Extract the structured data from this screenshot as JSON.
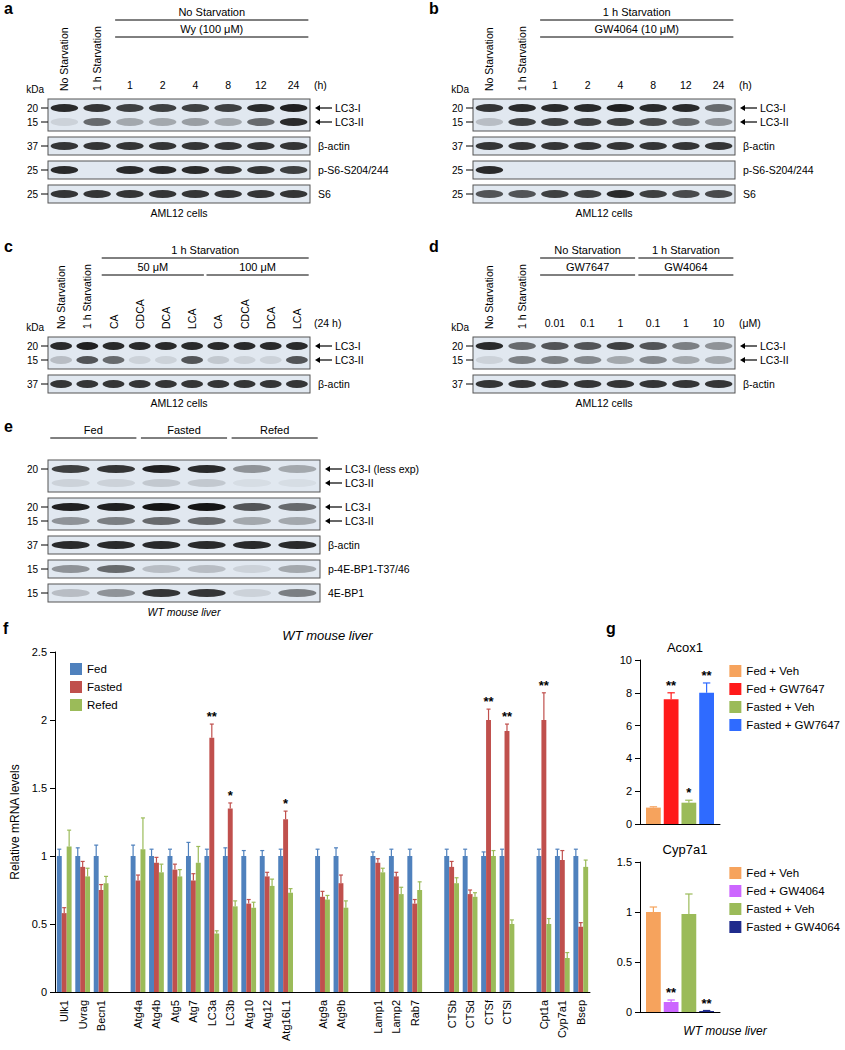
{
  "blots": [
    {
      "label": "a",
      "lane_labels": [
        "No Starvation",
        "1 h Starvation",
        "1",
        "2",
        "4",
        "8",
        "12",
        "24"
      ],
      "groups": [
        [
          {
            "text": "No Starvation",
            "from": 2,
            "to": 7
          }
        ],
        [
          {
            "text": "Wy (100 μM)",
            "from": 2,
            "to": 7
          }
        ]
      ],
      "suffix": "(h)",
      "unit": "kDa",
      "rows": [
        {
          "tracks": [
            {
              "kda": 20,
              "label": "LC3-I",
              "bands": [
                0.9,
                0.85,
                0.8,
                0.8,
                0.8,
                0.8,
                0.9,
                0.95
              ]
            },
            {
              "kda": 15,
              "label": "LC3-II",
              "bands": [
                0.1,
                0.6,
                0.3,
                0.3,
                0.35,
                0.3,
                0.6,
                0.9
              ]
            }
          ]
        },
        {
          "tracks": [
            {
              "kda": 37,
              "label": "β-actin",
              "bands": [
                0.85,
                0.85,
                0.85,
                0.85,
                0.85,
                0.85,
                0.85,
                0.85
              ]
            }
          ]
        },
        {
          "tracks": [
            {
              "kda": 25,
              "label": "p-S6-S204/244",
              "bands": [
                0.9,
                0,
                0.9,
                0.9,
                0.9,
                0.85,
                0.85,
                0.8
              ]
            }
          ]
        },
        {
          "tracks": [
            {
              "kda": 25,
              "label": "S6",
              "bands": [
                0.85,
                0.85,
                0.85,
                0.85,
                0.85,
                0.85,
                0.85,
                0.85
              ]
            }
          ]
        }
      ],
      "caption": "AML12 cells"
    },
    {
      "label": "b",
      "lane_labels": [
        "No Starvation",
        "1 h Starvation",
        "1",
        "2",
        "4",
        "8",
        "12",
        "24"
      ],
      "groups": [
        [
          {
            "text": "1 h Starvation",
            "from": 2,
            "to": 7
          }
        ],
        [
          {
            "text": "GW4064 (10 μM)",
            "from": 2,
            "to": 7
          }
        ]
      ],
      "suffix": "(h)",
      "unit": "kDa",
      "rows": [
        {
          "tracks": [
            {
              "kda": 20,
              "label": "LC3-I",
              "bands": [
                0.85,
                0.9,
                0.9,
                0.9,
                0.95,
                0.9,
                0.9,
                0.6
              ]
            },
            {
              "kda": 15,
              "label": "LC3-II",
              "bands": [
                0.2,
                0.8,
                0.8,
                0.8,
                0.8,
                0.75,
                0.6,
                0.4
              ]
            }
          ]
        },
        {
          "tracks": [
            {
              "kda": 37,
              "label": "β-actin",
              "bands": [
                0.85,
                0.85,
                0.85,
                0.85,
                0.85,
                0.85,
                0.85,
                0.85
              ]
            }
          ]
        },
        {
          "tracks": [
            {
              "kda": 25,
              "label": "p-S6-S204/244",
              "bands": [
                0.9,
                0,
                0,
                0,
                0,
                0,
                0,
                0
              ]
            }
          ]
        },
        {
          "tracks": [
            {
              "kda": 25,
              "label": "S6",
              "bands": [
                0.7,
                0.7,
                0.8,
                0.8,
                0.9,
                0.8,
                0.75,
                0.75
              ]
            }
          ]
        }
      ],
      "caption": "AML12 cells"
    },
    {
      "label": "c",
      "lane_labels": [
        "No Starvation",
        "1 h Starvation",
        "CA",
        "CDCA",
        "DCA",
        "LCA",
        "CA",
        "CDCA",
        "DCA",
        "LCA"
      ],
      "groups": [
        [
          {
            "text": "1 h Starvation",
            "from": 2,
            "to": 9
          }
        ],
        [
          {
            "text": "50 μM",
            "from": 2,
            "to": 5
          },
          {
            "text": "100 μM",
            "from": 6,
            "to": 9
          }
        ]
      ],
      "suffix": "(24 h)",
      "unit": "kDa",
      "rows": [
        {
          "tracks": [
            {
              "kda": 20,
              "label": "LC3-I",
              "bands": [
                0.9,
                0.95,
                0.9,
                0.9,
                0.9,
                0.9,
                0.9,
                0.9,
                0.9,
                0.9
              ]
            },
            {
              "kda": 15,
              "label": "LC3-II",
              "bands": [
                0.2,
                0.7,
                0.6,
                0.1,
                0.1,
                0.7,
                0.15,
                0.1,
                0.1,
                0.7
              ]
            }
          ]
        },
        {
          "tracks": [
            {
              "kda": 37,
              "label": "β-actin",
              "bands": [
                0.85,
                0.85,
                0.85,
                0.85,
                0.85,
                0.85,
                0.85,
                0.85,
                0.85,
                0.85
              ]
            }
          ]
        }
      ],
      "caption": "AML12 cells"
    },
    {
      "label": "d",
      "lane_labels": [
        "No Starvation",
        "1 h Starvation",
        "0.01",
        "0.1",
        "1",
        "0.1",
        "1",
        "10"
      ],
      "groups": [
        [
          {
            "text": "No Starvation",
            "from": 2,
            "to": 4
          },
          {
            "text": "1 h Starvation",
            "from": 5,
            "to": 7
          }
        ],
        [
          {
            "text": "GW7647",
            "from": 2,
            "to": 4
          },
          {
            "text": "GW4064",
            "from": 5,
            "to": 7
          }
        ]
      ],
      "suffix": "(μM)",
      "unit": "kDa",
      "rows": [
        {
          "tracks": [
            {
              "kda": 20,
              "label": "LC3-I",
              "bands": [
                0.9,
                0.6,
                0.7,
                0.7,
                0.8,
                0.7,
                0.5,
                0.4
              ]
            },
            {
              "kda": 15,
              "label": "LC3-II",
              "bands": [
                0.1,
                0.5,
                0.5,
                0.45,
                0.3,
                0.45,
                0.3,
                0.3
              ]
            }
          ]
        },
        {
          "tracks": [
            {
              "kda": 37,
              "label": "β-actin",
              "bands": [
                0.85,
                0.85,
                0.85,
                0.85,
                0.85,
                0.85,
                0.85,
                0.85
              ]
            }
          ]
        }
      ],
      "caption": "AML12 cells"
    },
    {
      "label": "e",
      "groups": [
        [
          {
            "text": "Fed",
            "from": 0,
            "to": 1
          },
          {
            "text": "Fasted",
            "from": 2,
            "to": 3
          },
          {
            "text": "Refed",
            "from": 4,
            "to": 5
          }
        ]
      ],
      "rows": [
        {
          "tracks": [
            {
              "kda": 20,
              "label": "LC3-I (less exp)",
              "bands": [
                0.8,
                0.85,
                0.95,
                0.9,
                0.4,
                0.3
              ]
            },
            {
              "kda": null,
              "label": "LC3-II",
              "bands": [
                0.1,
                0.1,
                0.15,
                0.15,
                0.05,
                0.05
              ]
            }
          ]
        },
        {
          "tracks": [
            {
              "kda": 20,
              "label": "LC3-I",
              "bands": [
                0.95,
                0.95,
                1,
                1,
                0.7,
                0.6
              ]
            },
            {
              "kda": 15,
              "label": "LC3-II",
              "bands": [
                0.4,
                0.5,
                0.6,
                0.6,
                0.3,
                0.3
              ]
            }
          ]
        },
        {
          "tracks": [
            {
              "kda": 37,
              "label": "β-actin",
              "bands": [
                0.9,
                0.9,
                0.9,
                0.9,
                0.9,
                0.9
              ]
            }
          ]
        },
        {
          "tracks": [
            {
              "kda": 15,
              "label": "p-4E-BP1-T37/46",
              "bands": [
                0.4,
                0.6,
                0.2,
                0.2,
                0.1,
                0.3
              ]
            }
          ]
        },
        {
          "tracks": [
            {
              "kda": 15,
              "label": "4E-BP1",
              "bands": [
                0.2,
                0.4,
                0.85,
                0.85,
                0.1,
                0.5
              ]
            }
          ]
        }
      ],
      "caption": "WT mouse liver",
      "caption_italic": true
    }
  ],
  "chart_panels": [
    {
      "label": "f"
    },
    {
      "label": "g",
      "caption": "WT mouse liver"
    }
  ],
  "chart_data": [
    {
      "type": "bar",
      "title": "WT mouse liver",
      "ylabel": "Relative mRNA levels",
      "categories": [
        "Ulk1",
        "Uvrag",
        "Becn1",
        null,
        "Atg4a",
        "Atg4b",
        "Atg5",
        "Atg7",
        "LC3a",
        "LC3b",
        "Atg10",
        "Atg12",
        "Atg16L1",
        null,
        "Atg9a",
        "Atg9b",
        null,
        "Lamp1",
        "Lamp2",
        "Rab7",
        null,
        "CTSb",
        "CTSd",
        "CTSf",
        "CTSl",
        null,
        "Cpt1a",
        "Cyp7a1",
        "Bsep"
      ],
      "series": [
        {
          "name": "Fed",
          "color": "#4f81bd",
          "values": [
            1.0,
            1.0,
            1.0,
            null,
            1.0,
            1.0,
            1.0,
            1.0,
            1.0,
            1.0,
            1.0,
            1.0,
            1.0,
            null,
            1.0,
            1.0,
            null,
            1.0,
            1.0,
            1.0,
            null,
            1.0,
            1.0,
            1.0,
            1.0,
            null,
            1.0,
            1.0,
            1.0
          ],
          "errors": [
            0.05,
            0.06,
            0.08,
            null,
            0.08,
            0.05,
            0.05,
            0.1,
            0.05,
            0.06,
            0.04,
            0.04,
            0.05,
            null,
            0.05,
            0.06,
            null,
            0.03,
            0.05,
            0.05,
            null,
            0.05,
            0.05,
            0.03,
            0.05,
            null,
            0.05,
            0.05,
            0.05
          ],
          "annotations": [
            null,
            null,
            null,
            null,
            null,
            null,
            null,
            null,
            null,
            null,
            null,
            null,
            null,
            null,
            null,
            null,
            null,
            null,
            null,
            null,
            null,
            null,
            null,
            null,
            null,
            null,
            null,
            null,
            null
          ]
        },
        {
          "name": "Fasted",
          "color": "#c0504d",
          "values": [
            0.58,
            0.92,
            0.75,
            null,
            0.82,
            0.95,
            0.9,
            0.82,
            1.87,
            1.35,
            0.65,
            0.85,
            1.27,
            null,
            0.7,
            0.8,
            null,
            0.95,
            0.85,
            0.65,
            null,
            0.92,
            0.72,
            2.0,
            1.92,
            null,
            2.0,
            0.97,
            0.48
          ],
          "errors": [
            0.04,
            0.04,
            0.04,
            null,
            0.04,
            0.04,
            0.04,
            0.05,
            0.1,
            0.04,
            0.03,
            0.03,
            0.06,
            null,
            0.04,
            0.06,
            null,
            0.03,
            0.03,
            0.03,
            null,
            0.04,
            0.03,
            0.08,
            0.05,
            null,
            0.2,
            0.07,
            0.03
          ],
          "annotations": [
            null,
            null,
            null,
            null,
            null,
            null,
            null,
            null,
            "**",
            "*",
            null,
            null,
            "*",
            null,
            null,
            null,
            null,
            null,
            null,
            null,
            null,
            null,
            null,
            "**",
            "**",
            null,
            "**",
            null,
            null
          ]
        },
        {
          "name": "Refed",
          "color": "#9bbb59",
          "values": [
            1.07,
            0.85,
            0.8,
            null,
            1.05,
            0.88,
            0.85,
            0.95,
            0.43,
            0.63,
            0.62,
            0.78,
            0.73,
            null,
            0.68,
            0.62,
            null,
            0.88,
            0.72,
            0.75,
            null,
            0.8,
            0.7,
            1.0,
            0.5,
            null,
            0.5,
            0.25,
            0.92
          ],
          "errors": [
            0.12,
            0.06,
            0.05,
            null,
            0.23,
            0.06,
            0.05,
            0.12,
            0.02,
            0.04,
            0.04,
            0.05,
            0.03,
            null,
            0.03,
            0.05,
            null,
            0.03,
            0.05,
            0.06,
            null,
            0.04,
            0.03,
            0.04,
            0.03,
            null,
            0.04,
            0.04,
            0.05
          ],
          "annotations": [
            null,
            null,
            null,
            null,
            null,
            null,
            null,
            null,
            null,
            null,
            null,
            null,
            null,
            null,
            null,
            null,
            null,
            null,
            null,
            null,
            null,
            null,
            null,
            null,
            null,
            null,
            null,
            null,
            null
          ]
        }
      ],
      "ylim": [
        0,
        2.5
      ],
      "yticks": [
        0,
        0.5,
        1,
        1.5,
        2,
        2.5
      ],
      "grid": false,
      "legend": "upper left"
    },
    {
      "type": "bar",
      "title": "Acox1",
      "categories": [
        null
      ],
      "series": [
        {
          "name": "Fed + Veh",
          "color": "#f6a35d",
          "values": [
            1.0
          ],
          "errors": [
            0.05
          ],
          "annotations": [
            null
          ]
        },
        {
          "name": "Fed + GW7647",
          "color": "#ff1a1a",
          "values": [
            7.6
          ],
          "errors": [
            0.4
          ],
          "annotations": [
            "**"
          ]
        },
        {
          "name": "Fasted + Veh",
          "color": "#9bbb59",
          "values": [
            1.3
          ],
          "errors": [
            0.15
          ],
          "annotations": [
            "*"
          ]
        },
        {
          "name": "Fasted + GW7647",
          "color": "#2f6bff",
          "values": [
            8.0
          ],
          "errors": [
            0.6
          ],
          "annotations": [
            "**"
          ]
        }
      ],
      "ylim": [
        0,
        10
      ],
      "yticks": [
        0,
        2,
        4,
        6,
        8,
        10
      ],
      "grid": false,
      "legend": "right",
      "tick_labels": "y"
    },
    {
      "type": "bar",
      "title": "Cyp7a1",
      "categories": [
        null
      ],
      "series": [
        {
          "name": "Fed + Veh",
          "color": "#f6a35d",
          "values": [
            1.0
          ],
          "errors": [
            0.05
          ],
          "annotations": [
            null
          ]
        },
        {
          "name": "Fed + GW4064",
          "color": "#cc66ff",
          "values": [
            0.1
          ],
          "errors": [
            0.02
          ],
          "annotations": [
            "**"
          ]
        },
        {
          "name": "Fasted + Veh",
          "color": "#9bbb59",
          "values": [
            0.98
          ],
          "errors": [
            0.2
          ],
          "annotations": [
            null
          ]
        },
        {
          "name": "Fasted + GW4064",
          "color": "#1f2b8c",
          "values": [
            0.01
          ],
          "errors": [
            0.005
          ],
          "annotations": [
            "**"
          ]
        }
      ],
      "ylim": [
        0,
        1.5
      ],
      "yticks": [
        0,
        0.5,
        1,
        1.5
      ],
      "grid": false,
      "legend": "right",
      "tick_labels": "y"
    }
  ]
}
